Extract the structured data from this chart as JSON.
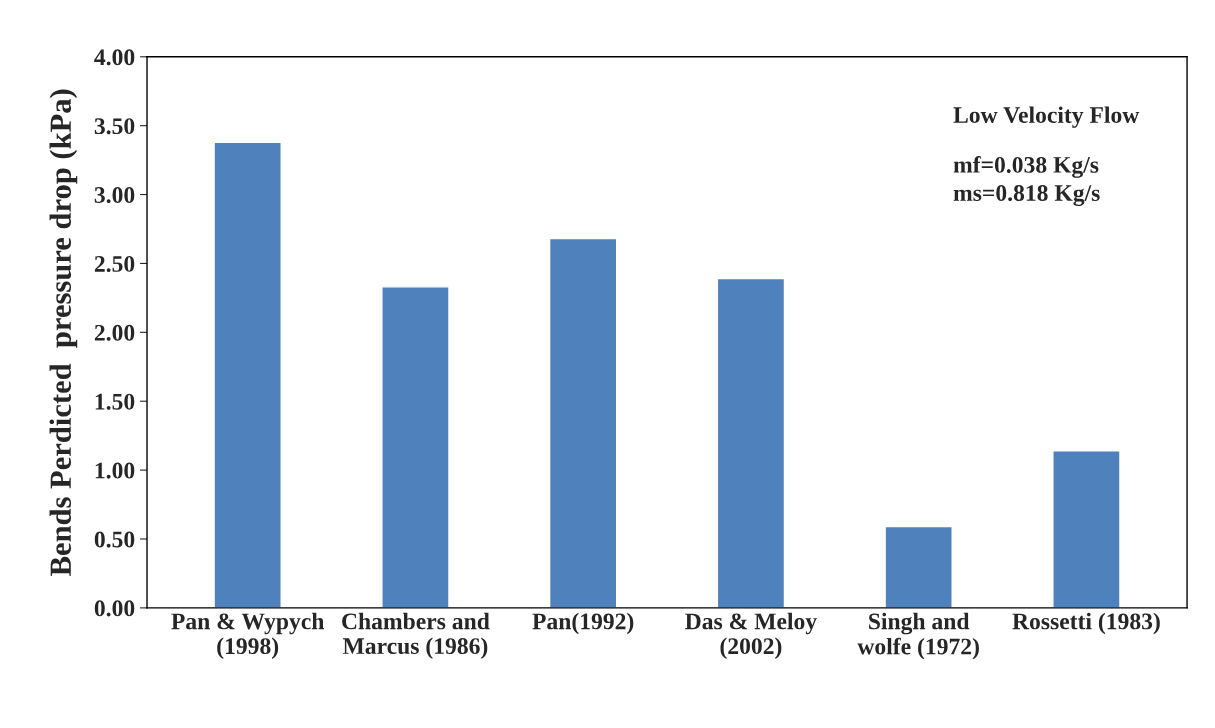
{
  "chart_data": {
    "type": "bar",
    "categories": [
      "Pan & Wypych\n(1998)",
      "Chambers and\nMarcus (1986)",
      "Pan(1992)",
      "Das & Meloy\n(2002)",
      "Singh and\nwolfe (1972)",
      "Rossetti (1983)"
    ],
    "values": [
      3.38,
      2.33,
      2.68,
      2.39,
      0.59,
      1.14
    ],
    "color": "#4f81bd",
    "ylabel": "Bends Perdicted  pressure drop (kPa)",
    "ylim": [
      0,
      4
    ],
    "yticks": [
      {
        "value": 0,
        "label": "0.00"
      },
      {
        "value": 0.5,
        "label": "0.50"
      },
      {
        "value": 1,
        "label": "1.00"
      },
      {
        "value": 1.5,
        "label": "1.50"
      },
      {
        "value": 2,
        "label": "2.00"
      },
      {
        "value": 2.5,
        "label": "2.50"
      },
      {
        "value": 3,
        "label": "3.00"
      },
      {
        "value": 3.5,
        "label": "3.50"
      },
      {
        "value": 4,
        "label": "4.00"
      }
    ],
    "annotations": [
      "Low Velocity Flow",
      "mf=0.038 Kg/s\nms=0.818 Kg/s"
    ],
    "grid": false,
    "legend": false
  }
}
